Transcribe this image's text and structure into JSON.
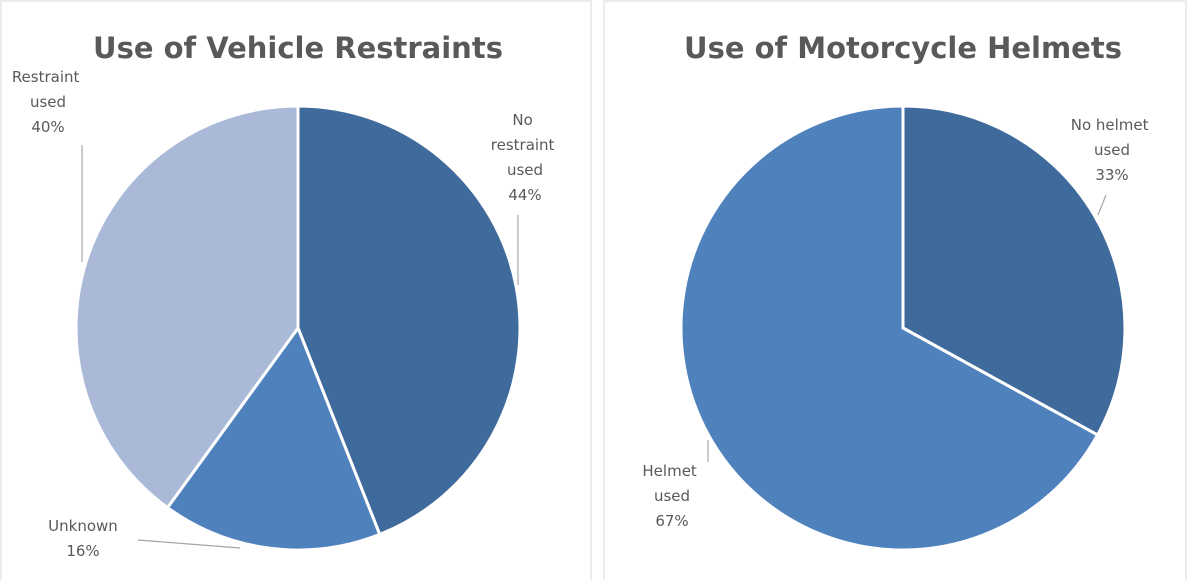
{
  "chart_data": [
    {
      "type": "pie",
      "title": "Use of Vehicle Restraints",
      "categories": [
        "No restraint used",
        "Unknown",
        "Restraint used"
      ],
      "values": [
        44,
        16,
        40
      ],
      "value_labels": [
        "44%",
        "16%",
        "40%"
      ],
      "colors": [
        "#3f6a9c",
        "#4f81bd",
        "#aab9d7"
      ]
    },
    {
      "type": "pie",
      "title": "Use of Motorcycle Helmets",
      "categories": [
        "No helmet used",
        "Helmet used"
      ],
      "values": [
        33,
        67
      ],
      "value_labels": [
        "33%",
        "67%"
      ],
      "colors": [
        "#3f6a9c",
        "#4f81bd"
      ]
    }
  ]
}
